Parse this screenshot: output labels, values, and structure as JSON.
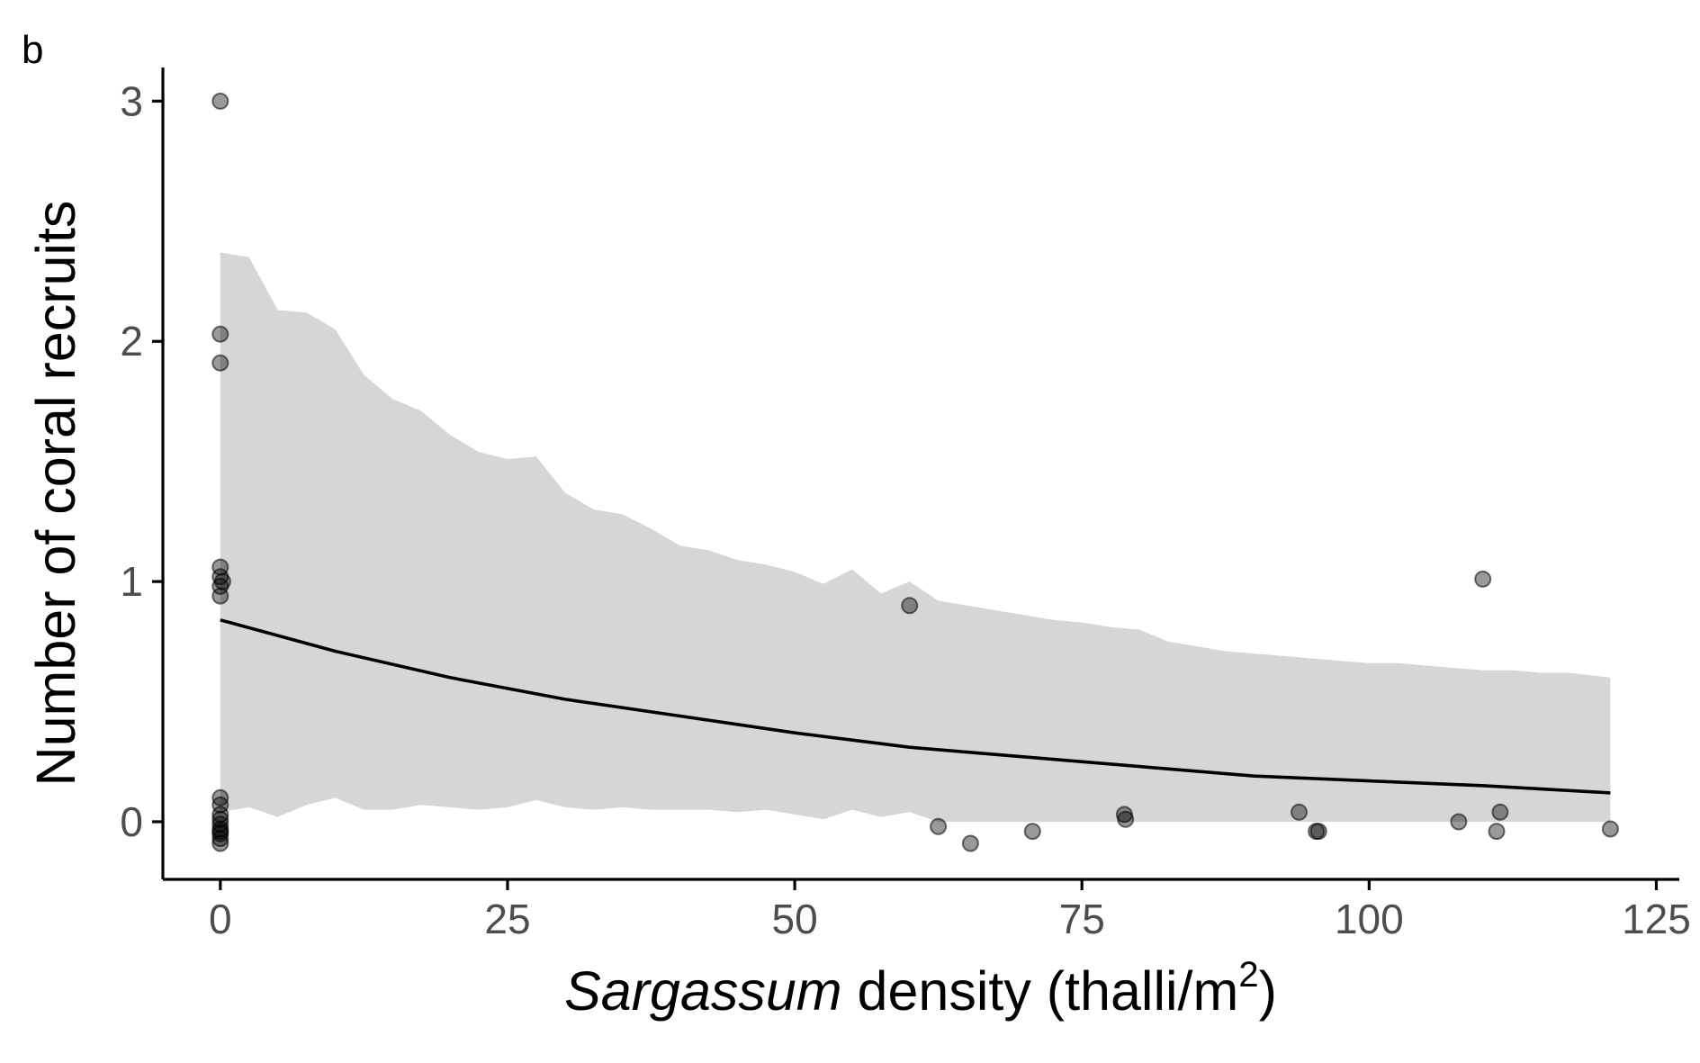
{
  "chart_data": {
    "type": "scatter",
    "panel_label": "b",
    "xlabel": {
      "italic": "Sargassum",
      "rest": " density (thalli/m",
      "superscript": "2",
      "close": ")"
    },
    "ylabel": "Number of coral recruits",
    "xlim": [
      -5,
      127
    ],
    "ylim": [
      -0.24,
      3.14
    ],
    "x_ticks": [
      0,
      25,
      50,
      75,
      100,
      125
    ],
    "x_tick_labels": [
      "0",
      "25",
      "50",
      "75",
      "100",
      "125"
    ],
    "y_ticks": [
      0,
      1,
      2,
      3
    ],
    "y_tick_labels": [
      "0",
      "1",
      "2",
      "3"
    ],
    "grid": false,
    "legend": "none",
    "colors": {
      "band": "#d6d6d6",
      "line": "#000000",
      "points": "#000000"
    },
    "confidence_band": {
      "x": [
        0,
        2.5,
        5,
        7.5,
        10,
        12.5,
        15,
        17.5,
        20,
        22.5,
        25,
        27.5,
        30,
        32.5,
        35,
        37.5,
        40,
        42.5,
        45,
        47.5,
        50,
        52.5,
        55,
        57.5,
        60,
        62.5,
        65,
        67.5,
        70,
        72.5,
        75,
        77.5,
        80,
        82.5,
        85,
        87.5,
        90,
        92.5,
        95,
        97.5,
        100,
        102.5,
        105,
        107.5,
        110,
        112.5,
        115,
        117.5,
        121
      ],
      "upper": [
        2.37,
        2.35,
        2.13,
        2.12,
        2.05,
        1.86,
        1.76,
        1.71,
        1.61,
        1.54,
        1.51,
        1.52,
        1.37,
        1.3,
        1.28,
        1.22,
        1.15,
        1.13,
        1.09,
        1.07,
        1.04,
        0.99,
        1.05,
        0.95,
        1.0,
        0.92,
        0.9,
        0.88,
        0.86,
        0.84,
        0.83,
        0.81,
        0.8,
        0.75,
        0.73,
        0.71,
        0.7,
        0.69,
        0.68,
        0.67,
        0.66,
        0.66,
        0.65,
        0.64,
        0.63,
        0.63,
        0.62,
        0.62,
        0.6
      ],
      "lower": [
        0.04,
        0.06,
        0.02,
        0.07,
        0.1,
        0.05,
        0.05,
        0.07,
        0.06,
        0.05,
        0.06,
        0.09,
        0.06,
        0.05,
        0.06,
        0.05,
        0.05,
        0.05,
        0.04,
        0.05,
        0.03,
        0.01,
        0.05,
        0.02,
        0.04,
        0.0,
        0.0,
        0.0,
        0.0,
        0.0,
        0.0,
        0.0,
        0.0,
        0.0,
        0.0,
        0.0,
        0.0,
        0.0,
        0.0,
        0.0,
        0.0,
        0.0,
        0.0,
        0.0,
        0.0,
        0.0,
        0.0,
        0.0,
        0.0
      ]
    },
    "fit_line": {
      "x": [
        0,
        10,
        20,
        30,
        40,
        50,
        60,
        70,
        80,
        90,
        100,
        110,
        121
      ],
      "y": [
        0.84,
        0.71,
        0.6,
        0.51,
        0.44,
        0.37,
        0.31,
        0.27,
        0.23,
        0.19,
        0.17,
        0.15,
        0.12
      ]
    },
    "points": [
      {
        "x": 0,
        "y": 3.0
      },
      {
        "x": 0,
        "y": 2.03
      },
      {
        "x": 0,
        "y": 1.91
      },
      {
        "x": 0,
        "y": 1.06
      },
      {
        "x": 0,
        "y": 1.02
      },
      {
        "x": 0.2,
        "y": 1.0
      },
      {
        "x": 0,
        "y": 0.98
      },
      {
        "x": 0,
        "y": 0.94
      },
      {
        "x": 0,
        "y": 0.1
      },
      {
        "x": 0,
        "y": 0.07
      },
      {
        "x": 0,
        "y": 0.03
      },
      {
        "x": 0,
        "y": 0.01
      },
      {
        "x": 0,
        "y": -0.01
      },
      {
        "x": 0,
        "y": -0.03
      },
      {
        "x": 0,
        "y": -0.04
      },
      {
        "x": 0,
        "y": -0.05
      },
      {
        "x": 0,
        "y": -0.07
      },
      {
        "x": 0,
        "y": -0.09
      },
      {
        "x": 60,
        "y": 0.9
      },
      {
        "x": 62.5,
        "y": -0.02
      },
      {
        "x": 65.3,
        "y": -0.09
      },
      {
        "x": 70.7,
        "y": -0.04
      },
      {
        "x": 78.7,
        "y": 0.03
      },
      {
        "x": 78.8,
        "y": 0.01
      },
      {
        "x": 93.9,
        "y": 0.04
      },
      {
        "x": 95.4,
        "y": -0.04
      },
      {
        "x": 95.6,
        "y": -0.04
      },
      {
        "x": 107.8,
        "y": 0.0
      },
      {
        "x": 109.9,
        "y": 1.01
      },
      {
        "x": 111.1,
        "y": -0.04
      },
      {
        "x": 111.4,
        "y": 0.04
      },
      {
        "x": 121,
        "y": -0.03
      }
    ]
  }
}
